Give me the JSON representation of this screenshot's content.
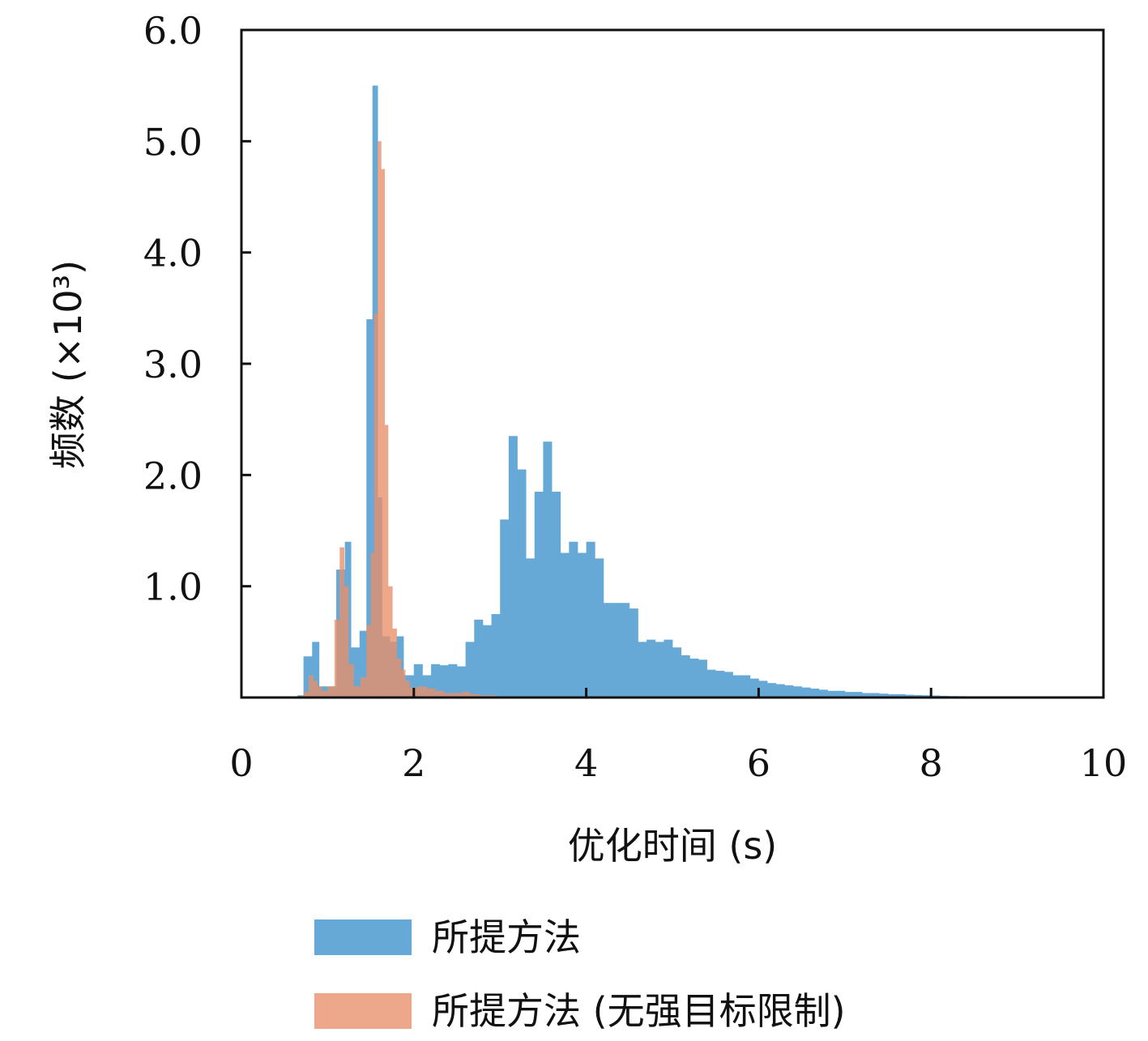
{
  "chart_data": {
    "type": "histogram",
    "xlabel": "优化时间 (s)",
    "ylabel": "频数 (×10³)",
    "xlim": [
      0,
      10
    ],
    "ylim": [
      0,
      6.0
    ],
    "xticks": [
      "0",
      "2",
      "4",
      "6",
      "8",
      "10"
    ],
    "xtick_values": [
      0,
      2,
      4,
      6,
      8,
      10
    ],
    "yticks": [
      "1.0",
      "2.0",
      "3.0",
      "4.0",
      "5.0",
      "6.0"
    ],
    "ytick_values": [
      1.0,
      2.0,
      3.0,
      4.0,
      5.0,
      6.0
    ],
    "grid": false,
    "legend_position": "bottom",
    "series": [
      {
        "name": "所提方法",
        "color": "#67a9d6",
        "bin_edges": [
          0.55,
          0.65,
          0.72,
          0.82,
          0.9,
          1.0,
          1.1,
          1.2,
          1.27,
          1.37,
          1.45,
          1.52,
          1.58,
          1.63,
          1.72,
          1.8,
          1.88,
          2.0,
          2.1,
          2.2,
          2.3,
          2.4,
          2.5,
          2.6,
          2.7,
          2.8,
          2.9,
          3.0,
          3.1,
          3.2,
          3.3,
          3.4,
          3.5,
          3.6,
          3.7,
          3.8,
          3.9,
          4.0,
          4.1,
          4.2,
          4.3,
          4.4,
          4.5,
          4.6,
          4.7,
          4.8,
          4.9,
          5.0,
          5.1,
          5.2,
          5.3,
          5.4,
          5.5,
          5.6,
          5.7,
          5.8,
          5.9,
          6.0,
          6.1,
          6.2,
          6.3,
          6.4,
          6.5,
          6.6,
          6.7,
          6.8,
          6.9,
          7.0,
          7.1,
          7.2,
          7.3,
          7.4,
          7.5,
          7.6,
          7.7,
          7.8,
          7.9,
          8.0,
          8.1,
          8.2,
          8.3,
          8.4,
          8.5,
          8.6,
          8.7,
          8.8,
          8.9,
          9.0,
          9.1,
          9.2,
          9.3,
          9.4,
          9.5,
          9.6,
          9.7,
          9.8,
          9.9,
          10.0
        ],
        "values": [
          0.01,
          0.02,
          0.37,
          0.5,
          0.1,
          0.1,
          1.15,
          1.4,
          0.45,
          0.6,
          3.4,
          5.5,
          1.8,
          0.55,
          0.5,
          0.55,
          0.2,
          0.3,
          0.2,
          0.3,
          0.29,
          0.3,
          0.28,
          0.5,
          0.7,
          0.65,
          0.75,
          1.6,
          2.35,
          2.05,
          1.25,
          1.85,
          2.3,
          1.85,
          1.3,
          1.4,
          1.3,
          1.4,
          1.25,
          0.85,
          0.85,
          0.85,
          0.8,
          0.5,
          0.52,
          0.5,
          0.52,
          0.45,
          0.38,
          0.35,
          0.34,
          0.25,
          0.24,
          0.23,
          0.2,
          0.2,
          0.17,
          0.15,
          0.13,
          0.12,
          0.11,
          0.1,
          0.09,
          0.08,
          0.07,
          0.06,
          0.06,
          0.05,
          0.05,
          0.04,
          0.04,
          0.035,
          0.03,
          0.03,
          0.025,
          0.022,
          0.02,
          0.018,
          0.015,
          0.013,
          0.012,
          0.01,
          0.01,
          0.008,
          0.007,
          0.006,
          0.005,
          0.004,
          0.004,
          0.003,
          0.003,
          0.002,
          0.002,
          0.002,
          0.001,
          0.001,
          0.001
        ]
      },
      {
        "name": "所提方法 (无强目标限制)",
        "color": "#e8906a",
        "opacity": 0.78,
        "bin_edges": [
          0.72,
          0.78,
          0.83,
          0.88,
          0.93,
          1.0,
          1.08,
          1.14,
          1.19,
          1.24,
          1.3,
          1.38,
          1.45,
          1.5,
          1.54,
          1.58,
          1.62,
          1.66,
          1.7,
          1.75,
          1.8,
          1.85,
          1.9,
          1.95,
          2.05,
          2.15,
          2.25,
          2.35,
          2.45,
          2.55,
          2.65,
          2.75,
          2.85,
          2.95,
          3.05,
          3.15,
          3.25,
          3.35
        ],
        "values": [
          0.05,
          0.2,
          0.15,
          0.1,
          0.06,
          0.1,
          0.7,
          1.35,
          1.0,
          0.3,
          0.1,
          0.18,
          0.65,
          1.3,
          3.45,
          5.0,
          4.75,
          2.45,
          1.0,
          0.62,
          0.35,
          0.25,
          0.15,
          0.09,
          0.1,
          0.08,
          0.06,
          0.04,
          0.04,
          0.05,
          0.03,
          0.02,
          0.02,
          0.01,
          0.01,
          0.005,
          0.003
        ]
      }
    ]
  }
}
